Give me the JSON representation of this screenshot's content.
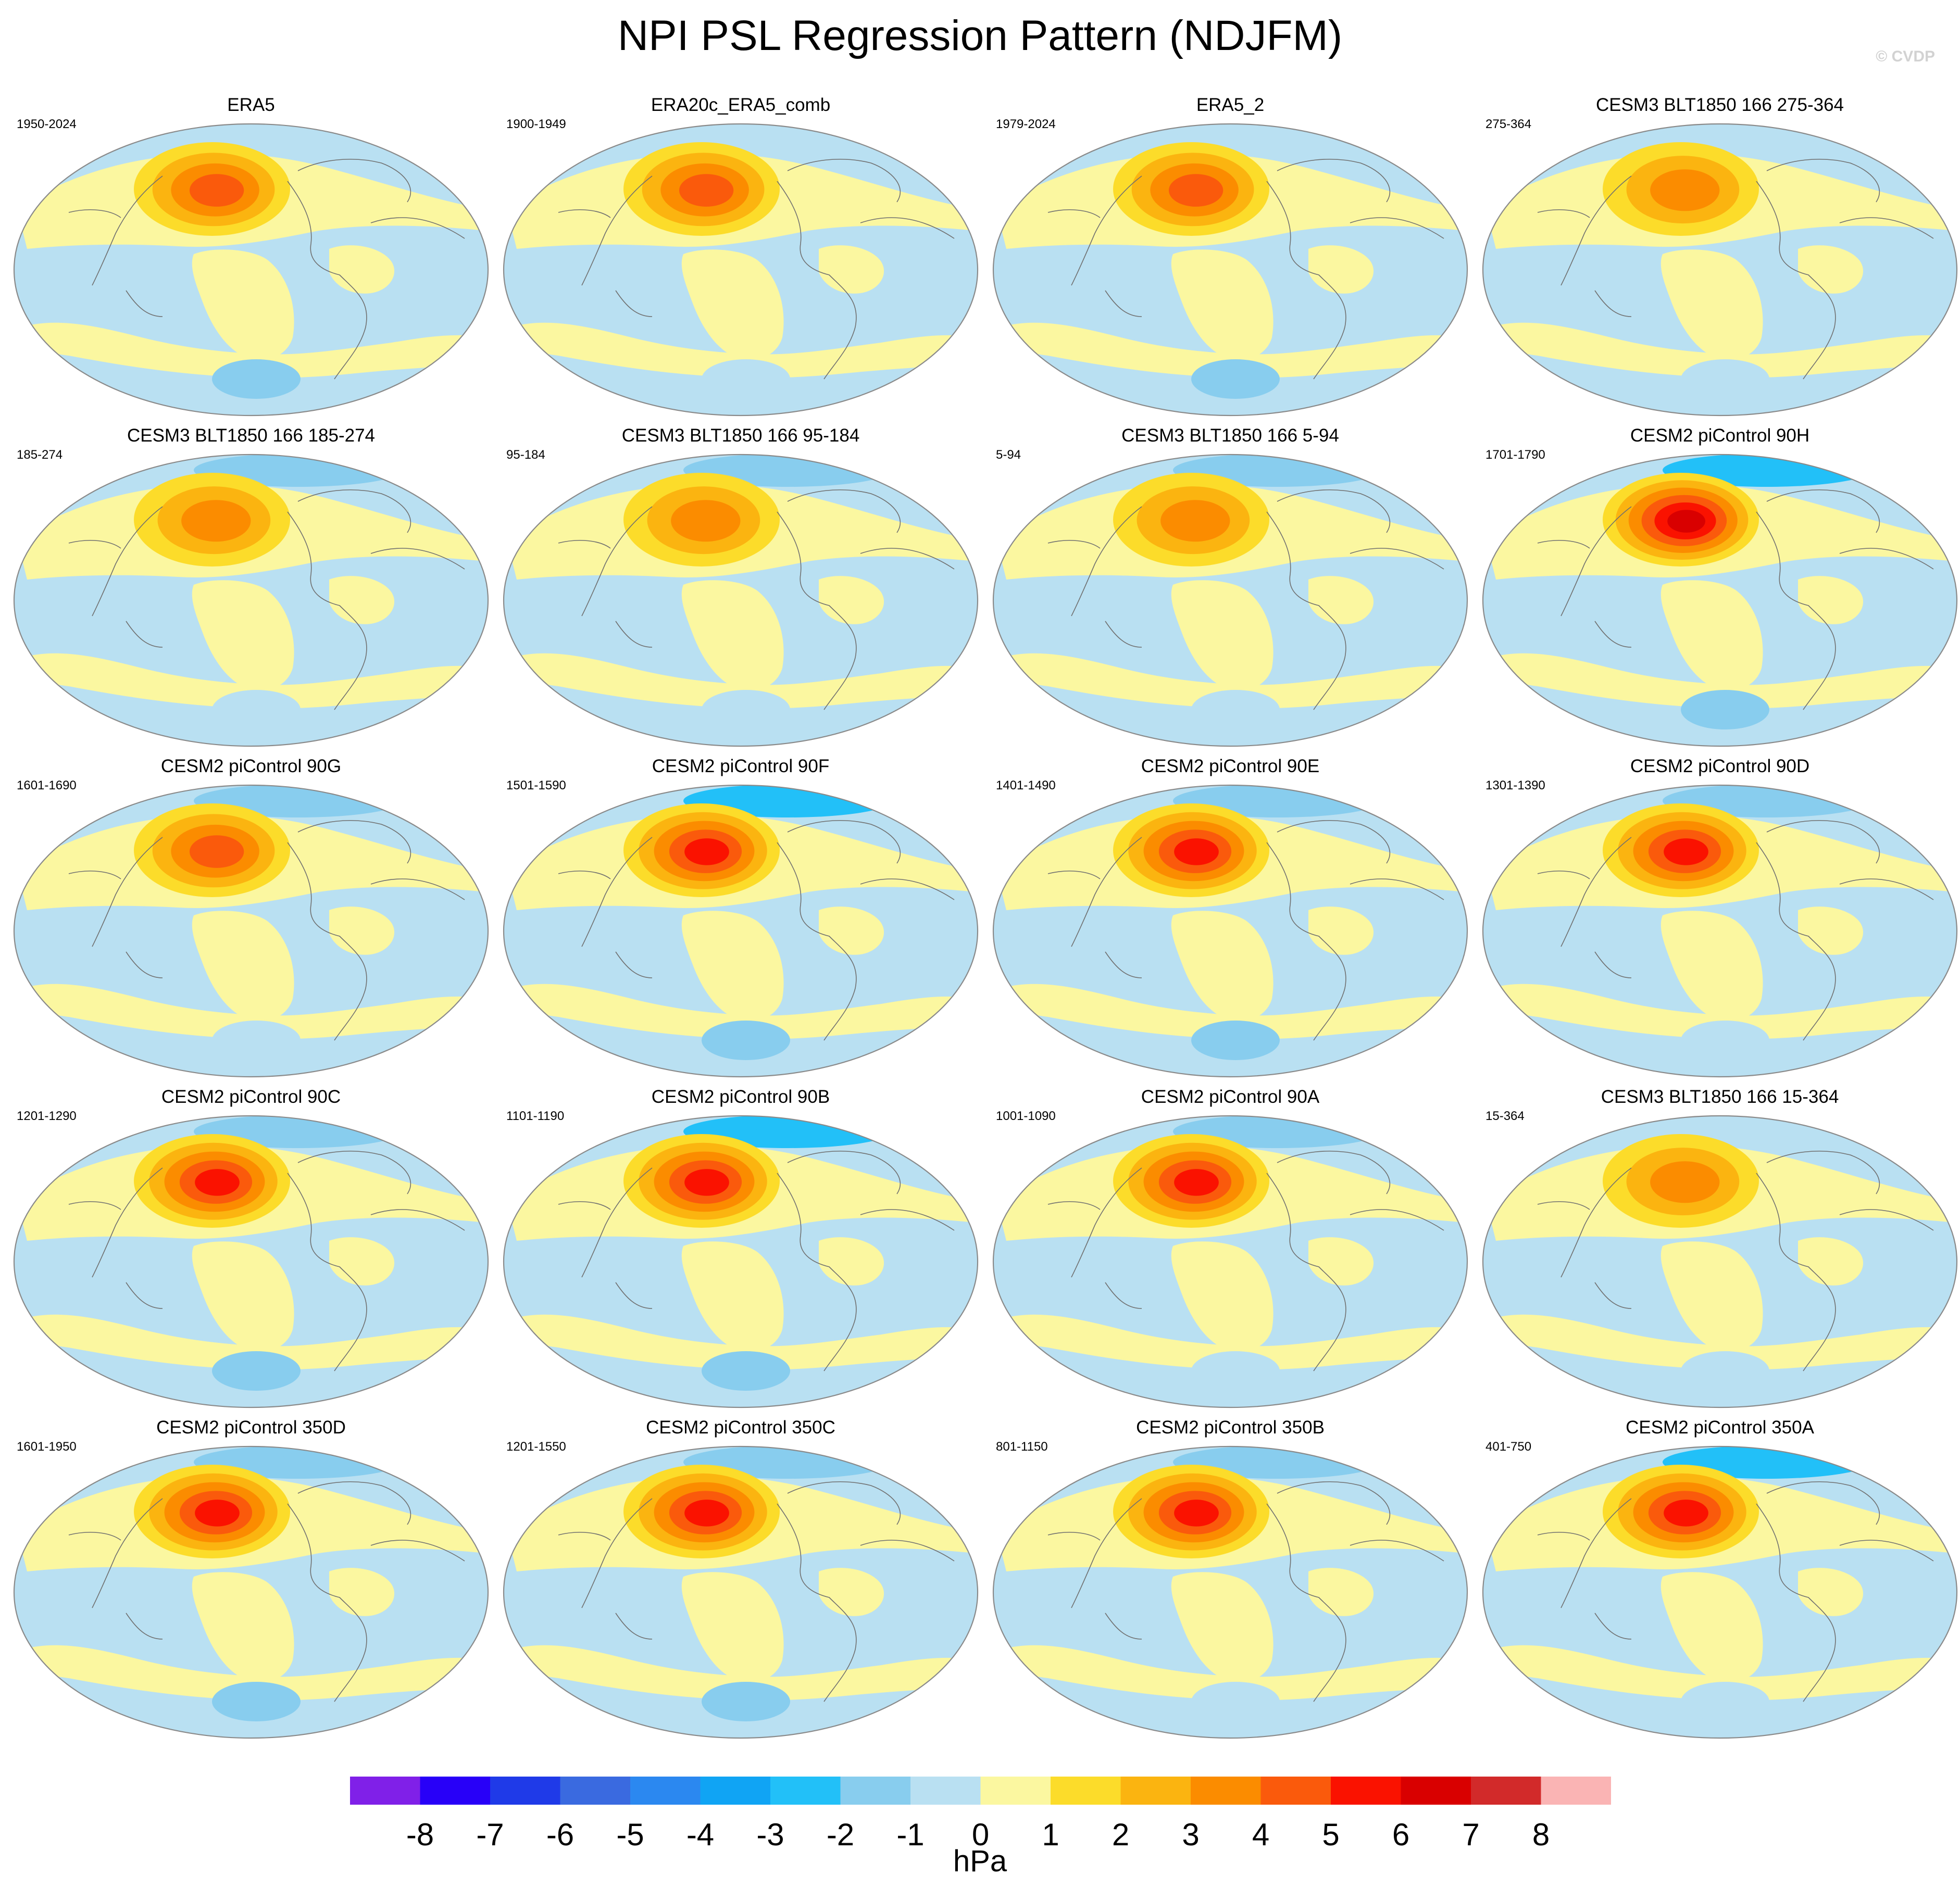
{
  "title": "NPI PSL Regression Pattern (NDJFM)",
  "watermark": "© CVDP",
  "colors": {
    "background": "#ffffff",
    "map_outline": "#8a8a8a",
    "coast": "#707070"
  },
  "map_legend": {
    "type": "filled contour",
    "projection": "global oval",
    "variable": "PSL regression",
    "units": "hPa",
    "labels": [
      "-8",
      "-7",
      "-6",
      "-5",
      "-4",
      "-3",
      "-2",
      "-1",
      "0",
      "1",
      "2",
      "3",
      "4",
      "5",
      "6",
      "7",
      "8"
    ],
    "bins": [
      {
        "lo": null,
        "hi": -8,
        "color": "#8020e8"
      },
      {
        "lo": -8,
        "hi": -7,
        "color": "#2800f8"
      },
      {
        "lo": -7,
        "hi": -6,
        "color": "#1f3ae8"
      },
      {
        "lo": -6,
        "hi": -5,
        "color": "#3a6ae0"
      },
      {
        "lo": -5,
        "hi": -4,
        "color": "#2b88f0"
      },
      {
        "lo": -4,
        "hi": -3,
        "color": "#10a4f4"
      },
      {
        "lo": -3,
        "hi": -2,
        "color": "#22c0f8"
      },
      {
        "lo": -2,
        "hi": -1,
        "color": "#88cdee"
      },
      {
        "lo": -1,
        "hi": 0,
        "color": "#b9e0f2"
      },
      {
        "lo": 0,
        "hi": 1,
        "color": "#fbf7a0"
      },
      {
        "lo": 1,
        "hi": 2,
        "color": "#fcdc2a"
      },
      {
        "lo": 2,
        "hi": 3,
        "color": "#fbb410"
      },
      {
        "lo": 3,
        "hi": 4,
        "color": "#fb8c00"
      },
      {
        "lo": 4,
        "hi": 5,
        "color": "#fa5a0c"
      },
      {
        "lo": 5,
        "hi": 6,
        "color": "#fa1200"
      },
      {
        "lo": 6,
        "hi": 7,
        "color": "#d90000"
      },
      {
        "lo": 7,
        "hi": 8,
        "color": "#d22a2a"
      },
      {
        "lo": 8,
        "hi": null,
        "color": "#fab4b4"
      }
    ]
  },
  "panels": [
    {
      "title": "ERA5",
      "period": "1950-2024",
      "npi_max": 4,
      "aleutian_min": -1,
      "southern_min": -2
    },
    {
      "title": "ERA20c_ERA5_comb",
      "period": "1900-1949",
      "npi_max": 4,
      "aleutian_min": -1,
      "southern_min": -1
    },
    {
      "title": "ERA5_2",
      "period": "1979-2024",
      "npi_max": 4,
      "aleutian_min": -1,
      "southern_min": -2
    },
    {
      "title": "CESM3 BLT1850 166 275-364",
      "period": "275-364",
      "npi_max": 3,
      "aleutian_min": -1,
      "southern_min": -1
    },
    {
      "title": "CESM3 BLT1850 166 185-274",
      "period": "185-274",
      "npi_max": 3,
      "aleutian_min": -2,
      "southern_min": -1
    },
    {
      "title": "CESM3 BLT1850 166 95-184",
      "period": "95-184",
      "npi_max": 3,
      "aleutian_min": -2,
      "southern_min": -1
    },
    {
      "title": "CESM3 BLT1850 166 5-94",
      "period": "5-94",
      "npi_max": 3,
      "aleutian_min": -2,
      "southern_min": -1
    },
    {
      "title": "CESM2 piControl 90H",
      "period": "1701-1790",
      "npi_max": 6,
      "aleutian_min": -3,
      "southern_min": -2
    },
    {
      "title": "CESM2 piControl 90G",
      "period": "1601-1690",
      "npi_max": 4,
      "aleutian_min": -2,
      "southern_min": -1
    },
    {
      "title": "CESM2 piControl 90F",
      "period": "1501-1590",
      "npi_max": 5,
      "aleutian_min": -3,
      "southern_min": -2
    },
    {
      "title": "CESM2 piControl 90E",
      "period": "1401-1490",
      "npi_max": 5,
      "aleutian_min": -2,
      "southern_min": -2
    },
    {
      "title": "CESM2 piControl 90D",
      "period": "1301-1390",
      "npi_max": 5,
      "aleutian_min": -2,
      "southern_min": -1
    },
    {
      "title": "CESM2 piControl 90C",
      "period": "1201-1290",
      "npi_max": 5,
      "aleutian_min": -2,
      "southern_min": -2
    },
    {
      "title": "CESM2 piControl 90B",
      "period": "1101-1190",
      "npi_max": 5,
      "aleutian_min": -3,
      "southern_min": -2
    },
    {
      "title": "CESM2 piControl 90A",
      "period": "1001-1090",
      "npi_max": 5,
      "aleutian_min": -2,
      "southern_min": -1
    },
    {
      "title": "CESM3 BLT1850 166 15-364",
      "period": "15-364",
      "npi_max": 3,
      "aleutian_min": -1,
      "southern_min": -1
    },
    {
      "title": "CESM2 piControl 350D",
      "period": "1601-1950",
      "npi_max": 5,
      "aleutian_min": -2,
      "southern_min": -2
    },
    {
      "title": "CESM2 piControl 350C",
      "period": "1201-1550",
      "npi_max": 5,
      "aleutian_min": -2,
      "southern_min": -2
    },
    {
      "title": "CESM2 piControl 350B",
      "period": "801-1150",
      "npi_max": 5,
      "aleutian_min": -2,
      "southern_min": -1
    },
    {
      "title": "CESM2 piControl 350A",
      "period": "401-750",
      "npi_max": 5,
      "aleutian_min": -3,
      "southern_min": -1
    }
  ]
}
